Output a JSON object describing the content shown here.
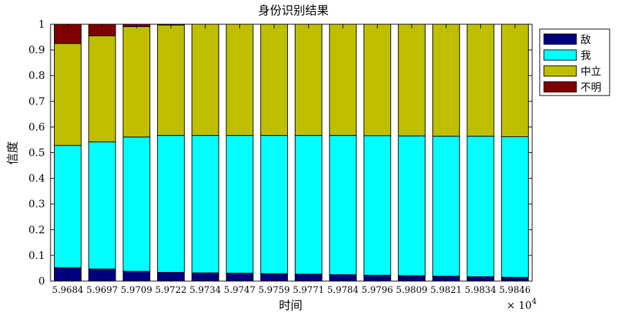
{
  "chart_data": {
    "type": "bar",
    "stacked": true,
    "title": "身份识别结果",
    "xlabel": "时间",
    "ylabel": "信度",
    "x_multiplier_label": "× 10",
    "x_multiplier_exp": "4",
    "categories": [
      "5.9684",
      "5.9697",
      "5.9709",
      "5.9722",
      "5.9734",
      "5.9747",
      "5.9759",
      "5.9771",
      "5.9784",
      "5.9796",
      "5.9809",
      "5.9821",
      "5.9834",
      "5.9846"
    ],
    "ylim": [
      0,
      1
    ],
    "yticks": [
      "0",
      "0.1",
      "0.2",
      "0.3",
      "0.4",
      "0.5",
      "0.6",
      "0.7",
      "0.8",
      "0.9",
      "1"
    ],
    "legend_position": "top-right",
    "series": [
      {
        "name": "敌",
        "color": "#000080",
        "values": [
          0.052,
          0.047,
          0.038,
          0.034,
          0.032,
          0.031,
          0.029,
          0.027,
          0.025,
          0.023,
          0.021,
          0.019,
          0.017,
          0.015
        ]
      },
      {
        "name": "我",
        "color": "#00ffff",
        "values": [
          0.476,
          0.495,
          0.523,
          0.533,
          0.535,
          0.536,
          0.538,
          0.54,
          0.542,
          0.543,
          0.544,
          0.545,
          0.547,
          0.547
        ]
      },
      {
        "name": "中立",
        "color": "#bfbf00",
        "values": [
          0.397,
          0.413,
          0.43,
          0.43,
          0.433,
          0.433,
          0.433,
          0.433,
          0.433,
          0.434,
          0.435,
          0.436,
          0.436,
          0.438
        ]
      },
      {
        "name": "不明",
        "color": "#800000",
        "values": [
          0.075,
          0.045,
          0.009,
          0.003,
          0,
          0,
          0,
          0,
          0,
          0,
          0,
          0,
          0,
          0
        ]
      }
    ]
  }
}
